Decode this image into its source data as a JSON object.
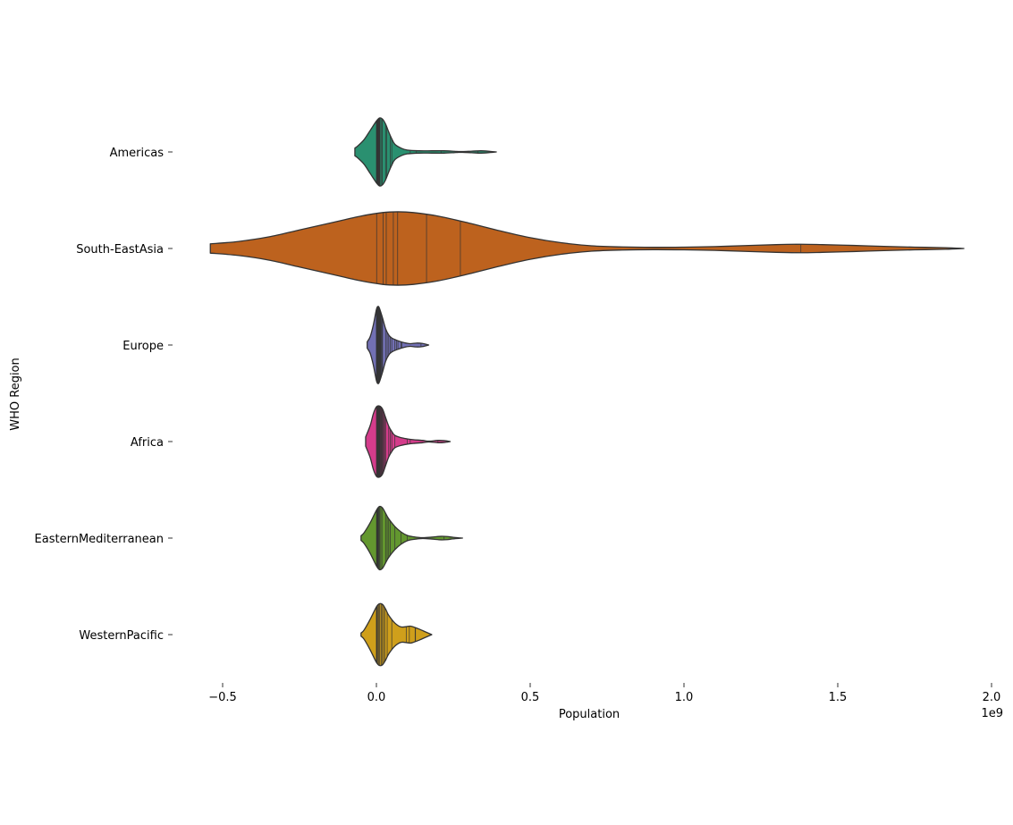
{
  "chart_data": {
    "type": "violin",
    "orientation": "horizontal",
    "inner": "stick",
    "xlabel": "Population",
    "ylabel": "WHO Region",
    "x_offset_label": "1e9",
    "xlim": [
      -0.6,
      2.0
    ],
    "x_scale_factor": 1000000000,
    "x_ticks": [
      -0.5,
      0.0,
      0.5,
      1.0,
      1.5,
      2.0
    ],
    "x_tick_labels": [
      "−0.5",
      "0.0",
      "0.5",
      "1.0",
      "1.5",
      "2.0"
    ],
    "grid": false,
    "legend": "none",
    "categories": [
      "Americas",
      "South-EastAsia",
      "Europe",
      "Africa",
      "EasternMediterranean",
      "WesternPacific"
    ],
    "series": [
      {
        "category": "Americas",
        "color": "#2a9070",
        "range": [
          -0.07,
          0.39
        ],
        "density": [
          [
            -0.07,
            0.1
          ],
          [
            -0.06,
            0.16
          ],
          [
            -0.04,
            0.32
          ],
          [
            -0.02,
            0.56
          ],
          [
            0.0,
            0.8
          ],
          [
            0.01,
            0.88
          ],
          [
            0.02,
            0.85
          ],
          [
            0.03,
            0.72
          ],
          [
            0.04,
            0.52
          ],
          [
            0.05,
            0.34
          ],
          [
            0.06,
            0.2
          ],
          [
            0.08,
            0.1
          ],
          [
            0.1,
            0.05
          ],
          [
            0.14,
            0.03
          ],
          [
            0.18,
            0.03
          ],
          [
            0.22,
            0.03
          ],
          [
            0.26,
            0.015
          ],
          [
            0.28,
            0.01
          ],
          [
            0.31,
            0.02
          ],
          [
            0.34,
            0.03
          ],
          [
            0.37,
            0.015
          ],
          [
            0.39,
            0.0
          ]
        ],
        "samples": [
          0.0003,
          0.0006,
          0.001,
          0.002,
          0.003,
          0.004,
          0.005,
          0.006,
          0.007,
          0.008,
          0.009,
          0.01,
          0.011,
          0.012,
          0.017,
          0.019,
          0.03,
          0.033,
          0.045,
          0.05,
          0.11,
          0.13,
          0.21,
          0.33
        ]
      },
      {
        "category": "South-EastAsia",
        "color": "#bd621e",
        "range": [
          -0.54,
          1.91
        ],
        "density": [
          [
            -0.54,
            0.12
          ],
          [
            -0.45,
            0.18
          ],
          [
            -0.35,
            0.3
          ],
          [
            -0.25,
            0.48
          ],
          [
            -0.15,
            0.66
          ],
          [
            -0.05,
            0.84
          ],
          [
            0.02,
            0.93
          ],
          [
            0.07,
            0.95
          ],
          [
            0.12,
            0.93
          ],
          [
            0.2,
            0.84
          ],
          [
            0.3,
            0.66
          ],
          [
            0.4,
            0.46
          ],
          [
            0.5,
            0.28
          ],
          [
            0.6,
            0.15
          ],
          [
            0.7,
            0.07
          ],
          [
            0.8,
            0.04
          ],
          [
            0.9,
            0.03
          ],
          [
            1.0,
            0.035
          ],
          [
            1.1,
            0.05
          ],
          [
            1.2,
            0.075
          ],
          [
            1.3,
            0.1
          ],
          [
            1.38,
            0.11
          ],
          [
            1.45,
            0.1
          ],
          [
            1.55,
            0.08
          ],
          [
            1.65,
            0.055
          ],
          [
            1.75,
            0.035
          ],
          [
            1.85,
            0.02
          ],
          [
            1.91,
            0.0
          ]
        ],
        "samples": [
          0.0008,
          0.022,
          0.032,
          0.055,
          0.069,
          0.163,
          0.273,
          1.38
        ]
      },
      {
        "category": "Europe",
        "color": "#7270b4",
        "range": [
          -0.03,
          0.17
        ],
        "density": [
          [
            -0.03,
            0.08
          ],
          [
            -0.02,
            0.22
          ],
          [
            -0.01,
            0.52
          ],
          [
            0.0,
            0.92
          ],
          [
            0.005,
            1.0
          ],
          [
            0.01,
            0.95
          ],
          [
            0.02,
            0.7
          ],
          [
            0.03,
            0.42
          ],
          [
            0.04,
            0.26
          ],
          [
            0.05,
            0.18
          ],
          [
            0.07,
            0.11
          ],
          [
            0.09,
            0.06
          ],
          [
            0.11,
            0.035
          ],
          [
            0.13,
            0.05
          ],
          [
            0.15,
            0.04
          ],
          [
            0.17,
            0.0
          ]
        ],
        "samples": [
          0.0001,
          0.0003,
          0.0006,
          0.001,
          0.002,
          0.003,
          0.004,
          0.005,
          0.006,
          0.007,
          0.008,
          0.009,
          0.01,
          0.011,
          0.012,
          0.013,
          0.014,
          0.016,
          0.018,
          0.02,
          0.03,
          0.035,
          0.04,
          0.045,
          0.05,
          0.06,
          0.065,
          0.07,
          0.08,
          0.083,
          0.145
        ]
      },
      {
        "category": "Africa",
        "color": "#d43c8b",
        "range": [
          -0.035,
          0.24
        ],
        "density": [
          [
            -0.035,
            0.12
          ],
          [
            -0.02,
            0.42
          ],
          [
            -0.01,
            0.72
          ],
          [
            0.0,
            0.9
          ],
          [
            0.01,
            0.92
          ],
          [
            0.02,
            0.84
          ],
          [
            0.03,
            0.62
          ],
          [
            0.04,
            0.4
          ],
          [
            0.05,
            0.26
          ],
          [
            0.06,
            0.16
          ],
          [
            0.08,
            0.1
          ],
          [
            0.1,
            0.07
          ],
          [
            0.12,
            0.05
          ],
          [
            0.15,
            0.03
          ],
          [
            0.17,
            0.01
          ],
          [
            0.2,
            0.03
          ],
          [
            0.22,
            0.025
          ],
          [
            0.24,
            0.0
          ]
        ],
        "samples": [
          0.0001,
          0.001,
          0.002,
          0.003,
          0.004,
          0.005,
          0.006,
          0.007,
          0.008,
          0.009,
          0.01,
          0.011,
          0.012,
          0.013,
          0.015,
          0.016,
          0.018,
          0.02,
          0.022,
          0.025,
          0.027,
          0.03,
          0.04,
          0.045,
          0.05,
          0.06,
          0.1,
          0.11,
          0.2
        ]
      },
      {
        "category": "EasternMediterranean",
        "color": "#63972f",
        "range": [
          -0.05,
          0.28
        ],
        "density": [
          [
            -0.05,
            0.06
          ],
          [
            -0.04,
            0.14
          ],
          [
            -0.02,
            0.4
          ],
          [
            0.0,
            0.72
          ],
          [
            0.01,
            0.82
          ],
          [
            0.02,
            0.78
          ],
          [
            0.03,
            0.64
          ],
          [
            0.04,
            0.5
          ],
          [
            0.06,
            0.3
          ],
          [
            0.08,
            0.16
          ],
          [
            0.1,
            0.07
          ],
          [
            0.12,
            0.035
          ],
          [
            0.15,
            0.01
          ],
          [
            0.18,
            0.025
          ],
          [
            0.21,
            0.045
          ],
          [
            0.23,
            0.04
          ],
          [
            0.25,
            0.02
          ],
          [
            0.28,
            0.0
          ]
        ],
        "samples": [
          0.0004,
          0.001,
          0.002,
          0.003,
          0.004,
          0.005,
          0.006,
          0.007,
          0.009,
          0.01,
          0.014,
          0.018,
          0.03,
          0.035,
          0.04,
          0.045,
          0.06,
          0.08,
          0.1,
          0.22
        ]
      },
      {
        "category": "WesternPacific",
        "color": "#cf9f1b",
        "range": [
          -0.05,
          0.18
        ],
        "density": [
          [
            -0.05,
            0.04
          ],
          [
            -0.04,
            0.12
          ],
          [
            -0.02,
            0.4
          ],
          [
            0.0,
            0.72
          ],
          [
            0.01,
            0.8
          ],
          [
            0.02,
            0.78
          ],
          [
            0.03,
            0.66
          ],
          [
            0.04,
            0.5
          ],
          [
            0.06,
            0.3
          ],
          [
            0.08,
            0.2
          ],
          [
            0.1,
            0.21
          ],
          [
            0.11,
            0.22
          ],
          [
            0.12,
            0.2
          ],
          [
            0.14,
            0.14
          ],
          [
            0.16,
            0.07
          ],
          [
            0.18,
            0.0
          ]
        ],
        "samples": [
          0.0001,
          0.0003,
          0.001,
          0.002,
          0.005,
          0.007,
          0.01,
          0.015,
          0.018,
          0.023,
          0.027,
          0.035,
          0.05,
          0.097,
          0.107,
          0.126,
          0.127
        ]
      }
    ]
  }
}
